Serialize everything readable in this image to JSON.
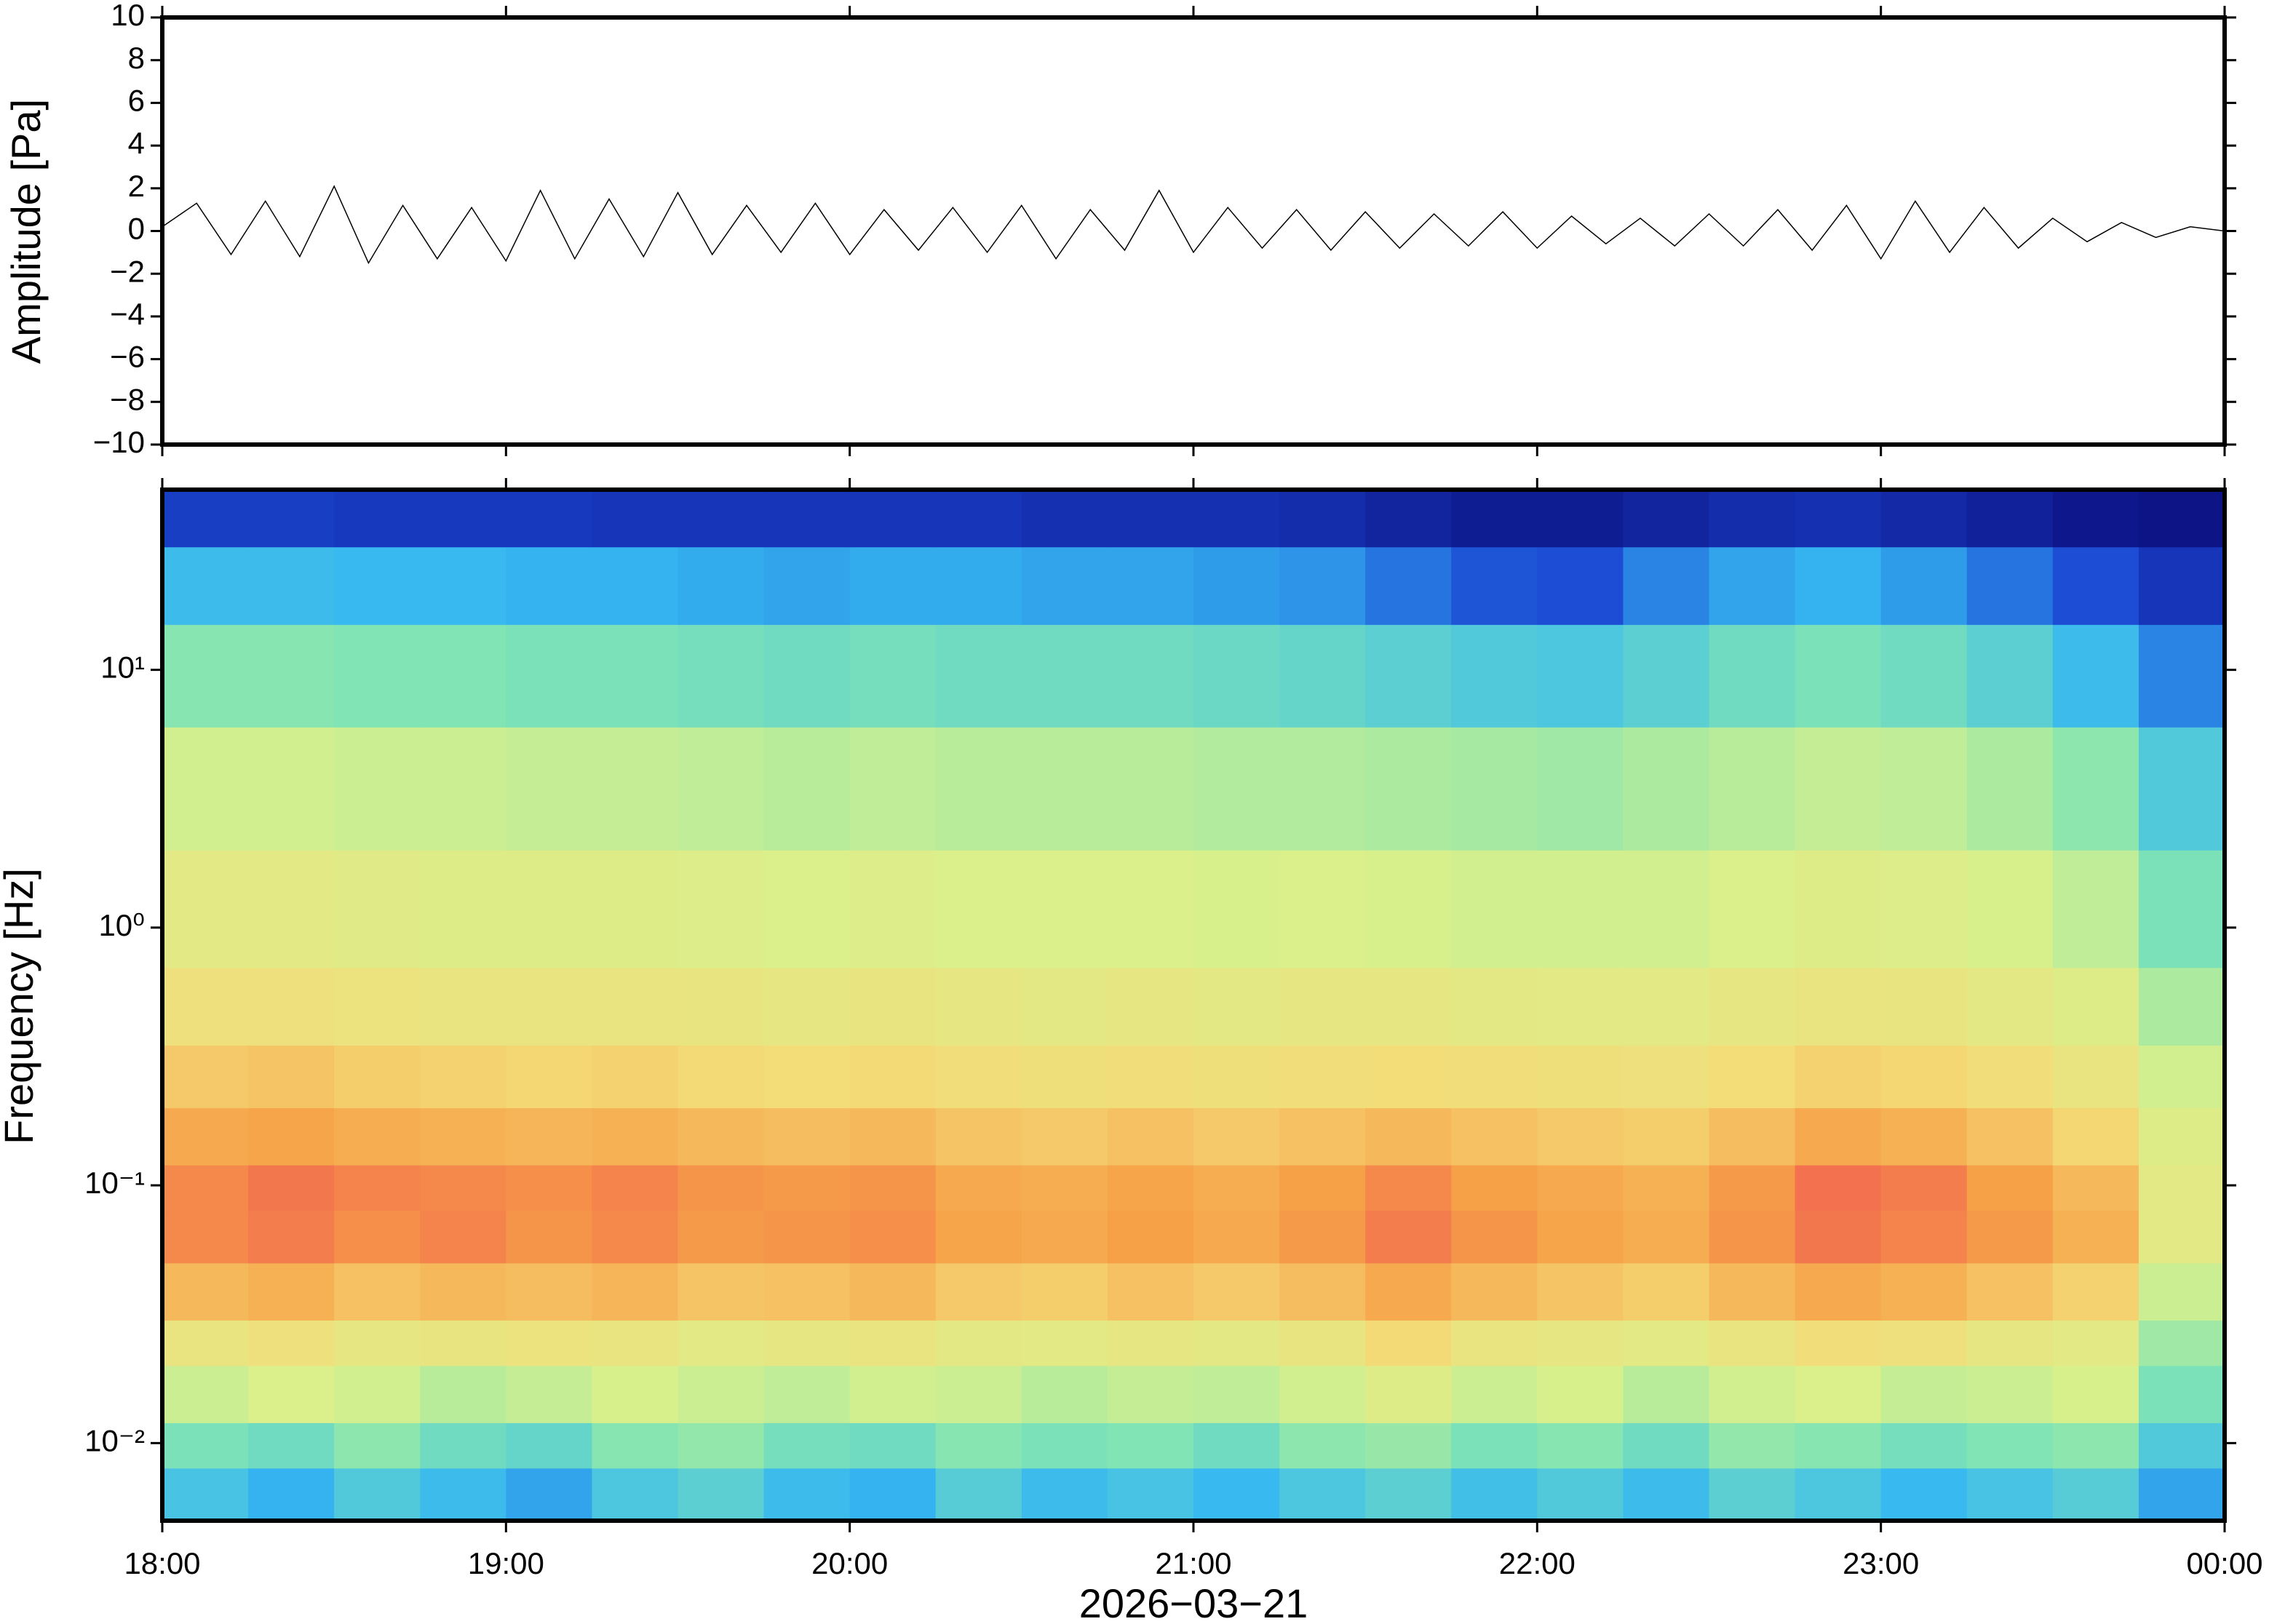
{
  "chart_data": [
    {
      "type": "line",
      "ylabel": "Amplitude [Pa]",
      "x": [
        18.0,
        18.1,
        18.2,
        18.3,
        18.4,
        18.5,
        18.6,
        18.7,
        18.8,
        18.9,
        19.0,
        19.1,
        19.2,
        19.3,
        19.4,
        19.5,
        19.6,
        19.7,
        19.8,
        19.9,
        20.0,
        20.1,
        20.2,
        20.3,
        20.4,
        20.5,
        20.6,
        20.7,
        20.8,
        20.9,
        21.0,
        21.1,
        21.2,
        21.3,
        21.4,
        21.5,
        21.6,
        21.7,
        21.8,
        21.9,
        22.0,
        22.1,
        22.2,
        22.3,
        22.4,
        22.5,
        22.6,
        22.7,
        22.8,
        22.9,
        23.0,
        23.1,
        23.2,
        23.3,
        23.4,
        23.5,
        23.6,
        23.7,
        23.8,
        23.9,
        24.0
      ],
      "values": [
        0.2,
        1.3,
        -1.1,
        1.4,
        -1.2,
        2.1,
        -1.5,
        1.2,
        -1.3,
        1.1,
        -1.4,
        1.9,
        -1.3,
        1.5,
        -1.2,
        1.8,
        -1.1,
        1.2,
        -1.0,
        1.3,
        -1.1,
        1.0,
        -0.9,
        1.1,
        -1.0,
        1.2,
        -1.3,
        1.0,
        -0.9,
        1.9,
        -1.0,
        1.1,
        -0.8,
        1.0,
        -0.9,
        0.9,
        -0.8,
        0.8,
        -0.7,
        0.9,
        -0.8,
        0.7,
        -0.6,
        0.6,
        -0.7,
        0.8,
        -0.7,
        1.0,
        -0.9,
        1.2,
        -1.3,
        1.4,
        -1.0,
        1.1,
        -0.8,
        0.6,
        -0.5,
        0.4,
        -0.3,
        0.2,
        0.0
      ],
      "color": "#000000",
      "xlim": [
        18,
        24
      ],
      "xticks": [
        {
          "value": 18,
          "label": "18:00"
        },
        {
          "value": 19,
          "label": "19:00"
        },
        {
          "value": 20,
          "label": "20:00"
        },
        {
          "value": 21,
          "label": "21:00"
        },
        {
          "value": 22,
          "label": "22:00"
        },
        {
          "value": 23,
          "label": "23:00"
        },
        {
          "value": 24,
          "label": "00:00"
        }
      ],
      "ylim": [
        -10,
        10
      ],
      "yticks": [
        {
          "value": -10,
          "label": "−10"
        },
        {
          "value": -8,
          "label": "−8"
        },
        {
          "value": -6,
          "label": "−6"
        },
        {
          "value": -4,
          "label": "−4"
        },
        {
          "value": -2,
          "label": "−2"
        },
        0,
        2,
        4,
        6,
        8,
        10
      ]
    },
    {
      "type": "heatmap",
      "ylabel": "Frequency [Hz]",
      "xlabel": "2026−03−21",
      "log_y": true,
      "xlim": [
        18,
        24
      ],
      "xticks": [
        {
          "value": 18,
          "label": "18:00"
        },
        {
          "value": 19,
          "label": "19:00"
        },
        {
          "value": 20,
          "label": "20:00"
        },
        {
          "value": 21,
          "label": "21:00"
        },
        {
          "value": 22,
          "label": "22:00"
        },
        {
          "value": 23,
          "label": "23:00"
        },
        {
          "value": 24,
          "label": "00:00"
        }
      ],
      "ylim": [
        0.005,
        50
      ],
      "yticks": [
        {
          "value": 0.01,
          "label": "10⁻²"
        },
        {
          "value": 0.1,
          "label": "10⁻¹"
        },
        {
          "value": 1,
          "label": "10⁰"
        },
        {
          "value": 10,
          "label": "10¹"
        }
      ],
      "x_edges": [
        18,
        18.25,
        18.5,
        18.75,
        19,
        19.25,
        19.5,
        19.75,
        20,
        20.25,
        20.5,
        20.75,
        21,
        21.25,
        21.5,
        21.75,
        22,
        22.25,
        22.5,
        22.75,
        23,
        23.25,
        23.5,
        23.75,
        24
      ],
      "y_edges": [
        0.005,
        0.008,
        0.012,
        0.02,
        0.03,
        0.05,
        0.08,
        0.12,
        0.2,
        0.35,
        0.7,
        2,
        6,
        15,
        30,
        50
      ],
      "zlim": [
        0,
        1
      ],
      "colormap": [
        "#0b0c7a",
        "#1b47d2",
        "#36b8f2",
        "#7fe4b4",
        "#d9f08c",
        "#f4dc78",
        "#f6a248",
        "#f04e52"
      ],
      "z": [
        [
          0.32,
          0.28,
          0.34,
          0.3,
          0.26,
          0.33,
          0.36,
          0.3,
          0.28,
          0.35,
          0.3,
          0.32,
          0.29,
          0.33,
          0.36,
          0.31,
          0.34,
          0.3,
          0.36,
          0.33,
          0.29,
          0.32,
          0.35,
          0.26
        ],
        [
          0.42,
          0.4,
          0.45,
          0.4,
          0.38,
          0.44,
          0.46,
          0.41,
          0.4,
          0.44,
          0.42,
          0.43,
          0.4,
          0.45,
          0.47,
          0.42,
          0.44,
          0.4,
          0.46,
          0.44,
          0.41,
          0.43,
          0.45,
          0.34
        ],
        [
          0.55,
          0.58,
          0.56,
          0.52,
          0.54,
          0.57,
          0.55,
          0.53,
          0.56,
          0.55,
          0.52,
          0.54,
          0.53,
          0.56,
          0.6,
          0.55,
          0.57,
          0.52,
          0.56,
          0.58,
          0.54,
          0.55,
          0.57,
          0.42
        ],
        [
          0.66,
          0.68,
          0.64,
          0.65,
          0.67,
          0.66,
          0.62,
          0.64,
          0.66,
          0.63,
          0.62,
          0.64,
          0.63,
          0.65,
          0.72,
          0.66,
          0.64,
          0.62,
          0.66,
          0.7,
          0.68,
          0.64,
          0.62,
          0.48
        ],
        [
          0.8,
          0.82,
          0.78,
          0.8,
          0.79,
          0.81,
          0.77,
          0.78,
          0.8,
          0.76,
          0.75,
          0.78,
          0.76,
          0.79,
          0.84,
          0.8,
          0.77,
          0.75,
          0.8,
          0.84,
          0.82,
          0.78,
          0.74,
          0.55
        ],
        [
          0.9,
          0.92,
          0.89,
          0.91,
          0.88,
          0.9,
          0.87,
          0.88,
          0.89,
          0.85,
          0.84,
          0.86,
          0.84,
          0.87,
          0.92,
          0.88,
          0.85,
          0.83,
          0.88,
          0.93,
          0.91,
          0.87,
          0.82,
          0.62
        ],
        [
          0.9,
          0.93,
          0.91,
          0.9,
          0.89,
          0.91,
          0.88,
          0.87,
          0.88,
          0.84,
          0.83,
          0.85,
          0.83,
          0.86,
          0.9,
          0.86,
          0.84,
          0.82,
          0.87,
          0.94,
          0.92,
          0.86,
          0.8,
          0.62
        ],
        [
          0.84,
          0.85,
          0.83,
          0.82,
          0.81,
          0.82,
          0.8,
          0.79,
          0.8,
          0.77,
          0.76,
          0.78,
          0.76,
          0.78,
          0.8,
          0.78,
          0.76,
          0.75,
          0.79,
          0.84,
          0.82,
          0.78,
          0.73,
          0.6
        ],
        [
          0.76,
          0.77,
          0.75,
          0.74,
          0.73,
          0.74,
          0.72,
          0.71,
          0.72,
          0.7,
          0.69,
          0.7,
          0.69,
          0.7,
          0.71,
          0.7,
          0.69,
          0.68,
          0.71,
          0.74,
          0.73,
          0.7,
          0.66,
          0.56
        ],
        [
          0.68,
          0.68,
          0.67,
          0.66,
          0.66,
          0.66,
          0.65,
          0.64,
          0.65,
          0.64,
          0.63,
          0.64,
          0.63,
          0.64,
          0.64,
          0.63,
          0.62,
          0.62,
          0.64,
          0.66,
          0.65,
          0.63,
          0.6,
          0.5
        ],
        [
          0.62,
          0.62,
          0.61,
          0.6,
          0.6,
          0.6,
          0.59,
          0.58,
          0.59,
          0.58,
          0.58,
          0.58,
          0.57,
          0.58,
          0.57,
          0.56,
          0.56,
          0.56,
          0.58,
          0.6,
          0.59,
          0.57,
          0.53,
          0.42
        ],
        [
          0.56,
          0.56,
          0.55,
          0.55,
          0.54,
          0.54,
          0.53,
          0.52,
          0.53,
          0.52,
          0.52,
          0.52,
          0.51,
          0.51,
          0.5,
          0.49,
          0.48,
          0.5,
          0.52,
          0.54,
          0.53,
          0.5,
          0.45,
          0.34
        ],
        [
          0.44,
          0.44,
          0.43,
          0.43,
          0.42,
          0.42,
          0.41,
          0.4,
          0.41,
          0.4,
          0.4,
          0.4,
          0.39,
          0.38,
          0.36,
          0.34,
          0.33,
          0.36,
          0.4,
          0.42,
          0.4,
          0.36,
          0.3,
          0.22
        ],
        [
          0.3,
          0.3,
          0.29,
          0.29,
          0.28,
          0.28,
          0.27,
          0.26,
          0.27,
          0.27,
          0.26,
          0.26,
          0.25,
          0.24,
          0.2,
          0.16,
          0.15,
          0.22,
          0.26,
          0.28,
          0.25,
          0.2,
          0.15,
          0.1
        ],
        [
          0.12,
          0.12,
          0.11,
          0.11,
          0.11,
          0.1,
          0.1,
          0.1,
          0.1,
          0.1,
          0.09,
          0.09,
          0.09,
          0.08,
          0.06,
          0.04,
          0.04,
          0.06,
          0.08,
          0.09,
          0.07,
          0.05,
          0.03,
          0.02
        ]
      ]
    }
  ]
}
